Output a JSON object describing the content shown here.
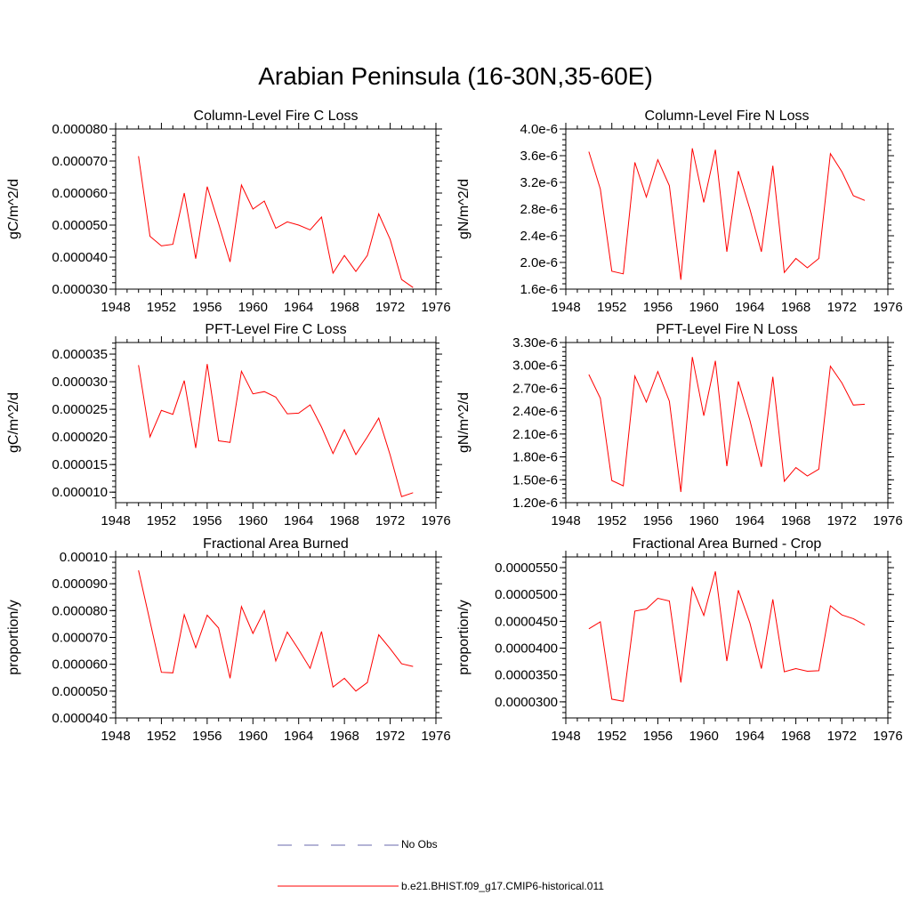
{
  "title": "Arabian Peninsula (16-30N,35-60E)",
  "chart_data": [
    {
      "type": "line",
      "title": "Column-Level Fire C Loss",
      "ylabel": "gC/m^2/d",
      "xlim": [
        1948,
        1976
      ],
      "ylim": [
        3e-05,
        8e-05
      ],
      "x_ticks": [
        1948,
        1952,
        1956,
        1960,
        1964,
        1968,
        1972,
        1976
      ],
      "x_tick_labels": [
        "1948",
        "1952",
        "1956",
        "1960",
        "1964",
        "1968",
        "1972",
        "1976"
      ],
      "y_ticks": [
        3e-05,
        4e-05,
        5e-05,
        6e-05,
        7e-05,
        8e-05
      ],
      "y_tick_labels": [
        "0.000030",
        "0.000040",
        "0.000050",
        "0.000060",
        "0.000070",
        "0.000080"
      ],
      "x": [
        1950,
        1951,
        1952,
        1953,
        1954,
        1955,
        1956,
        1957,
        1958,
        1959,
        1960,
        1961,
        1962,
        1963,
        1964,
        1965,
        1966,
        1967,
        1968,
        1969,
        1970,
        1971,
        1972,
        1973,
        1974
      ],
      "series": [
        {
          "name": "b.e21.BHIST.f09_g17.CMIP6-historical.011",
          "color": "#ff0000",
          "values": [
            7.15e-05,
            4.65e-05,
            4.35e-05,
            4.4e-05,
            6e-05,
            3.95e-05,
            6.2e-05,
            5.05e-05,
            3.85e-05,
            6.25e-05,
            5.5e-05,
            5.75e-05,
            4.9e-05,
            5.1e-05,
            5e-05,
            4.85e-05,
            5.25e-05,
            3.5e-05,
            4.05e-05,
            3.55e-05,
            4.05e-05,
            5.35e-05,
            4.55e-05,
            3.3e-05,
            3.05e-05
          ]
        }
      ]
    },
    {
      "type": "line",
      "title": "Column-Level Fire N Loss",
      "ylabel": "gN/m^2/d",
      "xlim": [
        1948,
        1976
      ],
      "ylim": [
        1.6e-06,
        4e-06
      ],
      "x_ticks": [
        1948,
        1952,
        1956,
        1960,
        1964,
        1968,
        1972,
        1976
      ],
      "x_tick_labels": [
        "1948",
        "1952",
        "1956",
        "1960",
        "1964",
        "1968",
        "1972",
        "1976"
      ],
      "y_ticks": [
        1.6e-06,
        2e-06,
        2.4e-06,
        2.8e-06,
        3.2e-06,
        3.6e-06,
        4e-06
      ],
      "y_tick_labels": [
        "1.6e-6",
        "2.0e-6",
        "2.4e-6",
        "2.8e-6",
        "3.2e-6",
        "3.6e-6",
        "4.0e-6"
      ],
      "x": [
        1950,
        1951,
        1952,
        1953,
        1954,
        1955,
        1956,
        1957,
        1958,
        1959,
        1960,
        1961,
        1962,
        1963,
        1964,
        1965,
        1966,
        1967,
        1968,
        1969,
        1970,
        1971,
        1972,
        1973,
        1974
      ],
      "series": [
        {
          "name": "b.e21.BHIST.f09_g17.CMIP6-historical.011",
          "color": "#ff0000",
          "values": [
            3.66e-06,
            3.1e-06,
            1.87e-06,
            1.83e-06,
            3.5e-06,
            2.98e-06,
            3.54e-06,
            3.15e-06,
            1.74e-06,
            3.71e-06,
            2.9e-06,
            3.69e-06,
            2.16e-06,
            3.37e-06,
            2.8e-06,
            2.16e-06,
            3.45e-06,
            1.85e-06,
            2.06e-06,
            1.92e-06,
            2.06e-06,
            3.63e-06,
            3.36e-06,
            3e-06,
            2.93e-06
          ]
        }
      ]
    },
    {
      "type": "line",
      "title": "PFT-Level Fire C Loss",
      "ylabel": "gC/m^2/d",
      "xlim": [
        1948,
        1976
      ],
      "ylim": [
        8.1e-06,
        3.71e-05
      ],
      "x_ticks": [
        1948,
        1952,
        1956,
        1960,
        1964,
        1968,
        1972,
        1976
      ],
      "x_tick_labels": [
        "1948",
        "1952",
        "1956",
        "1960",
        "1964",
        "1968",
        "1972",
        "1976"
      ],
      "y_ticks": [
        1e-05,
        1.5e-05,
        2e-05,
        2.5e-05,
        3e-05,
        3.5e-05
      ],
      "y_tick_labels": [
        "0.000010",
        "0.000015",
        "0.000020",
        "0.000025",
        "0.000030",
        "0.000035"
      ],
      "x": [
        1950,
        1951,
        1952,
        1953,
        1954,
        1955,
        1956,
        1957,
        1958,
        1959,
        1960,
        1961,
        1962,
        1963,
        1964,
        1965,
        1966,
        1967,
        1968,
        1969,
        1970,
        1971,
        1972,
        1973,
        1974
      ],
      "series": [
        {
          "name": "b.e21.BHIST.f09_g17.CMIP6-historical.011",
          "color": "#ff0000",
          "values": [
            3.3e-05,
            2e-05,
            2.48e-05,
            2.41e-05,
            3.02e-05,
            1.8e-05,
            3.32e-05,
            1.93e-05,
            1.9e-05,
            3.19e-05,
            2.78e-05,
            2.82e-05,
            2.72e-05,
            2.42e-05,
            2.43e-05,
            2.58e-05,
            2.18e-05,
            1.7e-05,
            2.13e-05,
            1.68e-05,
            2e-05,
            2.34e-05,
            1.67e-05,
            9.2e-06,
            9.9e-06
          ]
        }
      ]
    },
    {
      "type": "line",
      "title": "PFT-Level Fire N Loss",
      "ylabel": "gN/m^2/d",
      "xlim": [
        1948,
        1976
      ],
      "ylim": [
        1.2e-06,
        3.3e-06
      ],
      "x_ticks": [
        1948,
        1952,
        1956,
        1960,
        1964,
        1968,
        1972,
        1976
      ],
      "x_tick_labels": [
        "1948",
        "1952",
        "1956",
        "1960",
        "1964",
        "1968",
        "1972",
        "1976"
      ],
      "y_ticks": [
        1.2e-06,
        1.5e-06,
        1.8e-06,
        2.1e-06,
        2.4e-06,
        2.7e-06,
        3e-06,
        3.3e-06
      ],
      "y_tick_labels": [
        "1.20e-6",
        "1.50e-6",
        "1.80e-6",
        "2.10e-6",
        "2.40e-6",
        "2.70e-6",
        "3.00e-6",
        "3.30e-6"
      ],
      "x": [
        1950,
        1951,
        1952,
        1953,
        1954,
        1955,
        1956,
        1957,
        1958,
        1959,
        1960,
        1961,
        1962,
        1963,
        1964,
        1965,
        1966,
        1967,
        1968,
        1969,
        1970,
        1971,
        1972,
        1973,
        1974
      ],
      "series": [
        {
          "name": "b.e21.BHIST.f09_g17.CMIP6-historical.011",
          "color": "#ff0000",
          "values": [
            2.88e-06,
            2.57e-06,
            1.49e-06,
            1.42e-06,
            2.86e-06,
            2.52e-06,
            2.92e-06,
            2.53e-06,
            1.34e-06,
            3.11e-06,
            2.34e-06,
            3.06e-06,
            1.68e-06,
            2.79e-06,
            2.28e-06,
            1.67e-06,
            2.85e-06,
            1.48e-06,
            1.66e-06,
            1.55e-06,
            1.64e-06,
            2.99e-06,
            2.77e-06,
            2.48e-06,
            2.49e-06
          ]
        }
      ]
    },
    {
      "type": "line",
      "title": "Fractional Area Burned",
      "ylabel": "proportion/y",
      "xlim": [
        1948,
        1976
      ],
      "ylim": [
        4e-05,
        0.0001
      ],
      "x_ticks": [
        1948,
        1952,
        1956,
        1960,
        1964,
        1968,
        1972,
        1976
      ],
      "x_tick_labels": [
        "1948",
        "1952",
        "1956",
        "1960",
        "1964",
        "1968",
        "1972",
        "1976"
      ],
      "y_ticks": [
        4e-05,
        5e-05,
        6e-05,
        7e-05,
        8e-05,
        9e-05,
        0.0001
      ],
      "y_tick_labels": [
        "0.000040",
        "0.000050",
        "0.000060",
        "0.000070",
        "0.000080",
        "0.000090",
        "0.00010"
      ],
      "x": [
        1950,
        1951,
        1952,
        1953,
        1954,
        1955,
        1956,
        1957,
        1958,
        1959,
        1960,
        1961,
        1962,
        1963,
        1964,
        1965,
        1966,
        1967,
        1968,
        1969,
        1970,
        1971,
        1972,
        1973,
        1974
      ],
      "series": [
        {
          "name": "b.e21.BHIST.f09_g17.CMIP6-historical.011",
          "color": "#ff0000",
          "values": [
            9.5e-05,
            7.6e-05,
            5.7e-05,
            5.68e-05,
            7.85e-05,
            6.62e-05,
            7.83e-05,
            7.35e-05,
            5.48e-05,
            8.15e-05,
            7.15e-05,
            8e-05,
            6.12e-05,
            7.2e-05,
            6.55e-05,
            5.85e-05,
            7.22e-05,
            5.15e-05,
            5.48e-05,
            5e-05,
            5.32e-05,
            7.1e-05,
            6.58e-05,
            6.02e-05,
            5.92e-05
          ]
        }
      ]
    },
    {
      "type": "line",
      "title": "Fractional Area Burned - Crop",
      "ylabel": "proportion/y",
      "xlim": [
        1948,
        1976
      ],
      "ylim": [
        2.7e-05,
        5.7e-05
      ],
      "x_ticks": [
        1948,
        1952,
        1956,
        1960,
        1964,
        1968,
        1972,
        1976
      ],
      "x_tick_labels": [
        "1948",
        "1952",
        "1956",
        "1960",
        "1964",
        "1968",
        "1972",
        "1976"
      ],
      "y_ticks": [
        3e-05,
        3.5e-05,
        4e-05,
        4.5e-05,
        5e-05,
        5.5e-05
      ],
      "y_tick_labels": [
        "0.0000300",
        "0.0000350",
        "0.0000400",
        "0.0000450",
        "0.0000500",
        "0.0000550"
      ],
      "x": [
        1950,
        1951,
        1952,
        1953,
        1954,
        1955,
        1956,
        1957,
        1958,
        1959,
        1960,
        1961,
        1962,
        1963,
        1964,
        1965,
        1966,
        1967,
        1968,
        1969,
        1970,
        1971,
        1972,
        1973,
        1974
      ],
      "series": [
        {
          "name": "b.e21.BHIST.f09_g17.CMIP6-historical.011",
          "color": "#ff0000",
          "values": [
            4.36e-05,
            4.49e-05,
            3.05e-05,
            3.01e-05,
            4.69e-05,
            4.73e-05,
            4.93e-05,
            4.88e-05,
            3.36e-05,
            5.13e-05,
            4.61e-05,
            5.43e-05,
            3.76e-05,
            5.08e-05,
            4.47e-05,
            3.62e-05,
            4.91e-05,
            3.56e-05,
            3.62e-05,
            3.57e-05,
            3.58e-05,
            4.79e-05,
            4.62e-05,
            4.55e-05,
            4.43e-05
          ]
        }
      ]
    }
  ],
  "legend": {
    "position": "bottom-center",
    "items": [
      {
        "label": "No Obs",
        "color": "#6a6aae",
        "style": "dashed"
      },
      {
        "label": "b.e21.BHIST.f09_g17.CMIP6-historical.011",
        "color": "#ff0000",
        "style": "solid"
      }
    ]
  }
}
